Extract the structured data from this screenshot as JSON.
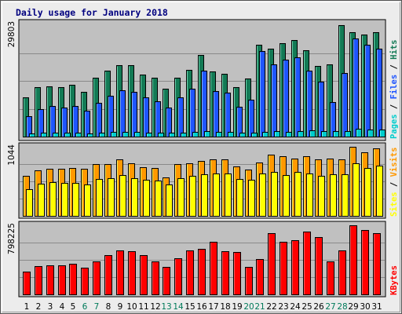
{
  "chart_data": {
    "type": "bar",
    "title": "Daily usage for January 2018",
    "categories": [
      "1",
      "2",
      "3",
      "4",
      "5",
      "6",
      "7",
      "8",
      "9",
      "10",
      "11",
      "12",
      "13",
      "14",
      "15",
      "16",
      "17",
      "18",
      "19",
      "20",
      "21",
      "22",
      "23",
      "24",
      "25",
      "26",
      "27",
      "28",
      "29",
      "30",
      "31"
    ],
    "weekend_days": [
      "6",
      "7",
      "13",
      "14",
      "20",
      "21",
      "27",
      "28"
    ],
    "colors": {
      "plot_bg": "#c0c0c0",
      "grid": "#8a8a8a",
      "title": "#00007f",
      "weekday_tick": "#000000",
      "weekend_tick": "#007a5a",
      "pages": "#00cccc",
      "files": "#1f55ff",
      "hits": "#137a55",
      "sites": "#ffff00",
      "visits": "#ff9900",
      "kbytes": "#ff0000"
    },
    "panels": [
      {
        "id": "hits",
        "ylabel": "29803",
        "ymax": 29803,
        "series": [
          {
            "name": "Hits",
            "color": "#137a55",
            "values": [
              10400,
              13300,
              13500,
              13300,
              13900,
              11900,
              15800,
              17600,
              19100,
              19100,
              16600,
              15800,
              12700,
              15800,
              17900,
              21900,
              17400,
              16800,
              13200,
              15500,
              24600,
              23500,
              25000,
              25900,
              23100,
              18800,
              19400,
              29803,
              27900,
              27300,
              27900
            ]
          },
          {
            "name": "Files",
            "color": "#1f55ff",
            "values": [
              5400,
              7300,
              8100,
              7700,
              8100,
              7000,
              9000,
              10900,
              12300,
              11900,
              10500,
              9500,
              7700,
              10500,
              12700,
              17600,
              12200,
              11700,
              7900,
              9900,
              22800,
              19300,
              20500,
              21100,
              17600,
              14600,
              9200,
              17100,
              26300,
              24600,
              23600
            ]
          },
          {
            "name": "Pages",
            "color": "#00cccc",
            "values": [
              900,
              1100,
              1000,
              1100,
              1000,
              900,
              1000,
              1300,
              1300,
              1300,
              1100,
              1100,
              1000,
              1100,
              1300,
              1400,
              1300,
              1200,
              1100,
              1100,
              1300,
              1400,
              1300,
              1500,
              1600,
              1500,
              1400,
              1400,
              2000,
              1900,
              1800
            ]
          }
        ],
        "legend": [
          "Pages",
          "Files",
          "Hits"
        ]
      },
      {
        "id": "visits",
        "ylabel": "1044",
        "ymax": 1044,
        "series": [
          {
            "name": "Visits",
            "color": "#ff9900",
            "values": [
              600,
              690,
              710,
              710,
              720,
              710,
              780,
              780,
              855,
              800,
              735,
              720,
              585,
              780,
              800,
              835,
              855,
              855,
              745,
              700,
              810,
              930,
              900,
              865,
              900,
              855,
              865,
              855,
              1044,
              960,
              1020
            ]
          },
          {
            "name": "Sites",
            "color": "#ffff00",
            "values": [
              400,
              490,
              510,
              500,
              500,
              470,
              560,
              570,
              620,
              570,
              550,
              530,
              470,
              570,
              610,
              630,
              635,
              635,
              560,
              550,
              640,
              660,
              620,
              660,
              640,
              610,
              630,
              630,
              800,
              720,
              760
            ]
          }
        ],
        "legend": [
          "Sites",
          "Visits"
        ]
      },
      {
        "id": "kbytes",
        "ylabel": "798225",
        "ymax": 798225,
        "series": [
          {
            "name": "KBytes",
            "color": "#ff0000",
            "values": [
              265000,
              325000,
              335000,
              335000,
              350000,
              305000,
              380000,
              458000,
              505000,
              495000,
              455000,
              380000,
              315000,
              420000,
              505000,
              530000,
              610000,
              500000,
              490000,
              315000,
              405000,
              710000,
              610000,
              625000,
              725000,
              660000,
              380000,
              505000,
              798225,
              745000,
              705000
            ]
          }
        ],
        "legend": [
          "KBytes"
        ]
      }
    ]
  }
}
